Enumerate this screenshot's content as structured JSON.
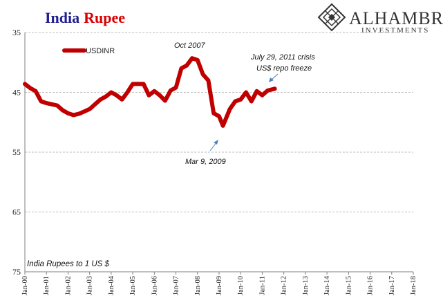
{
  "title": {
    "part1": "India",
    "part2": "Rupee",
    "color1": "#1f1f8f",
    "color2": "#d80000"
  },
  "brand": {
    "name": "ALHAMBRA",
    "sub": "INVESTMENTS",
    "logo_icon": "diamond-lattice-logo-icon"
  },
  "note": "India Rupees to 1 US $",
  "colors": {
    "series": "#c00000",
    "grid": "#a6a6a6",
    "axis": "#7f7f7f",
    "annotation_arrow": "#4f81bd"
  },
  "chart_data": {
    "type": "line",
    "series": [
      {
        "name": "USDINR",
        "x": [
          2000.0,
          2000.25,
          2000.5,
          2000.75,
          2001.0,
          2001.25,
          2001.5,
          2001.75,
          2002.0,
          2002.25,
          2002.5,
          2002.75,
          2003.0,
          2003.25,
          2003.5,
          2003.75,
          2004.0,
          2004.25,
          2004.5,
          2004.75,
          2005.0,
          2005.25,
          2005.5,
          2005.75,
          2006.0,
          2006.25,
          2006.5,
          2006.75,
          2007.0,
          2007.25,
          2007.5,
          2007.75,
          2008.0,
          2008.25,
          2008.5,
          2008.75,
          2009.0,
          2009.18,
          2009.5,
          2009.75,
          2010.0,
          2010.25,
          2010.5,
          2010.75,
          2011.0,
          2011.25,
          2011.58
        ],
        "y": [
          43.6,
          44.3,
          44.8,
          46.5,
          46.8,
          47.0,
          47.2,
          48.0,
          48.5,
          48.8,
          48.6,
          48.2,
          47.8,
          47.0,
          46.2,
          45.7,
          45.0,
          45.5,
          46.2,
          45.0,
          43.6,
          43.6,
          43.6,
          45.5,
          44.8,
          45.5,
          46.4,
          44.7,
          44.2,
          41.0,
          40.5,
          39.3,
          39.6,
          42.0,
          43.0,
          48.5,
          49.0,
          50.6,
          47.8,
          46.5,
          46.2,
          45.0,
          46.5,
          44.8,
          45.5,
          44.7,
          44.4
        ]
      }
    ],
    "x_ticks": [
      "Jan-00",
      "Jan-01",
      "Jan-02",
      "Jan-03",
      "Jan-04",
      "Jan-05",
      "Jan-06",
      "Jan-07",
      "Jan-08",
      "Jan-09",
      "Jan-10",
      "Jan-11",
      "Jan-12",
      "Jan-13",
      "Jan-14",
      "Jan-15",
      "Jan-16",
      "Jan-17",
      "Jan-18"
    ],
    "x_range": [
      2000,
      2018
    ],
    "y_ticks": [
      35,
      45,
      55,
      65,
      75
    ],
    "ylim": [
      35,
      75
    ],
    "y_inverted": true,
    "grid": "horizontal dashed",
    "legend_placement": "top-left",
    "annotations": [
      {
        "text": "Oct 2007",
        "x": 2007.8,
        "y": 38.5
      },
      {
        "text": "Mar 9, 2009",
        "x": 2009.18,
        "y": 50.6
      },
      {
        "text_lines": [
          "July 29, 2011 crisis",
          "US$ repo freeze"
        ],
        "x": 2011.58,
        "y": 44.4
      }
    ]
  }
}
